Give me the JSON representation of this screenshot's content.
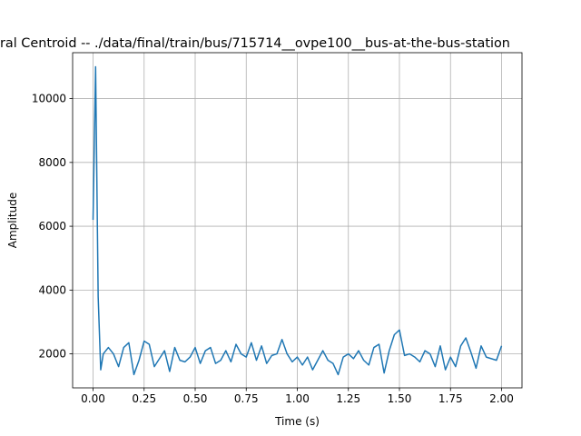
{
  "chart_data": {
    "type": "line",
    "title": "ral Centroid -- ./data/final/train/bus/715714__ovpe100__bus-at-the-bus-station",
    "x_label": "Time (s)",
    "y_label": "Amplitude",
    "color": "#1f77b4",
    "grid": true,
    "xlim": [
      -0.1,
      2.1
    ],
    "ylim": [
      935,
      11440
    ],
    "xticks": [
      {
        "value": 0,
        "label": "0.00"
      },
      {
        "value": 0.25,
        "label": "0.25"
      },
      {
        "value": 0.5,
        "label": "0.50"
      },
      {
        "value": 0.75,
        "label": "0.75"
      },
      {
        "value": 1,
        "label": "1.00"
      },
      {
        "value": 1.25,
        "label": "1.25"
      },
      {
        "value": 1.5,
        "label": "1.50"
      },
      {
        "value": 1.75,
        "label": "1.75"
      },
      {
        "value": 2,
        "label": "2.00"
      }
    ],
    "yticks": [
      2000,
      4000,
      6000,
      8000,
      10000
    ],
    "x": [
      0,
      0.0125,
      0.025,
      0.0375,
      0.05,
      0.075,
      0.1,
      0.125,
      0.15,
      0.175,
      0.2,
      0.225,
      0.25,
      0.275,
      0.3,
      0.325,
      0.35,
      0.375,
      0.4,
      0.425,
      0.45,
      0.475,
      0.5,
      0.525,
      0.55,
      0.575,
      0.6,
      0.625,
      0.65,
      0.675,
      0.7,
      0.725,
      0.75,
      0.775,
      0.8,
      0.825,
      0.85,
      0.875,
      0.9,
      0.925,
      0.95,
      0.975,
      1.0,
      1.025,
      1.05,
      1.075,
      1.1,
      1.125,
      1.15,
      1.175,
      1.2,
      1.225,
      1.25,
      1.275,
      1.3,
      1.325,
      1.35,
      1.375,
      1.4,
      1.425,
      1.45,
      1.475,
      1.5,
      1.525,
      1.55,
      1.575,
      1.6,
      1.625,
      1.65,
      1.675,
      1.7,
      1.725,
      1.75,
      1.775,
      1.8,
      1.825,
      1.85,
      1.875,
      1.9,
      1.925,
      1.95,
      1.975,
      2.0
    ],
    "values": [
      6200,
      11000,
      3800,
      1500,
      2000,
      2200,
      2000,
      1600,
      2200,
      2350,
      1350,
      1800,
      2400,
      2300,
      1600,
      1850,
      2100,
      1450,
      2200,
      1800,
      1750,
      1900,
      2200,
      1700,
      2100,
      2200,
      1700,
      1800,
      2100,
      1750,
      2300,
      2000,
      1900,
      2350,
      1800,
      2250,
      1700,
      1950,
      2000,
      2450,
      2000,
      1750,
      1900,
      1650,
      1900,
      1500,
      1800,
      2100,
      1800,
      1700,
      1350,
      1900,
      2000,
      1850,
      2100,
      1800,
      1650,
      2200,
      2300,
      1400,
      2100,
      2600,
      2750,
      1950,
      2000,
      1900,
      1750,
      2100,
      2000,
      1600,
      2250,
      1500,
      1900,
      1600,
      2250,
      2500,
      2050,
      1550,
      2250,
      1900,
      1850,
      1800,
      2250
    ]
  }
}
